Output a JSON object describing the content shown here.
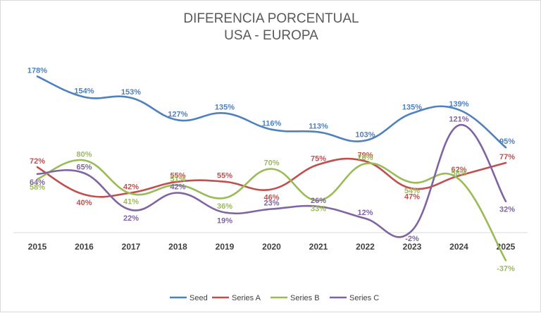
{
  "chart_data": {
    "type": "line",
    "title": "DIFERENCIA PORCENTUAL",
    "subtitle": "USA - EUROPA",
    "xlabel": "",
    "ylabel": "",
    "categories": [
      "2015",
      "2016",
      "2017",
      "2018",
      "2019",
      "2020",
      "2021",
      "2022",
      "2023",
      "2024",
      "2025"
    ],
    "ylim": [
      -40,
      180
    ],
    "grid": false,
    "smooth": true,
    "legend_position": "bottom",
    "series": [
      {
        "name": "Seed",
        "color": "#4f81bd",
        "values": [
          178,
          154,
          153,
          127,
          135,
          116,
          113,
          103,
          135,
          139,
          95
        ],
        "labels": [
          "178%",
          "154%",
          "153%",
          "127%",
          "135%",
          "116%",
          "113%",
          "103%",
          "135%",
          "139%",
          "95%"
        ]
      },
      {
        "name": "Series A",
        "color": "#c0504d",
        "values": [
          72,
          40,
          42,
          55,
          55,
          46,
          75,
          79,
          47,
          62,
          77
        ],
        "labels": [
          "72%",
          "40%",
          "42%",
          "55%",
          "55%",
          "46%",
          "75%",
          "79%",
          "47%",
          "62%",
          "77%"
        ]
      },
      {
        "name": "Series B",
        "color": "#9bbb59",
        "values": [
          58,
          80,
          41,
          51,
          36,
          70,
          33,
          76,
          54,
          58,
          -37
        ],
        "labels": [
          "58%",
          "80%",
          "41%",
          "51%",
          "36%",
          "70%",
          "33%",
          "76%",
          "54%",
          "58%",
          "-37%"
        ]
      },
      {
        "name": "Series C",
        "color": "#8064a2",
        "values": [
          64,
          65,
          22,
          42,
          19,
          23,
          26,
          12,
          -2,
          121,
          32
        ],
        "labels": [
          "64%",
          "65%",
          "22%",
          "42%",
          "19%",
          "23%",
          "26%",
          "12%",
          "-2%",
          "121%",
          "32%"
        ]
      }
    ]
  }
}
